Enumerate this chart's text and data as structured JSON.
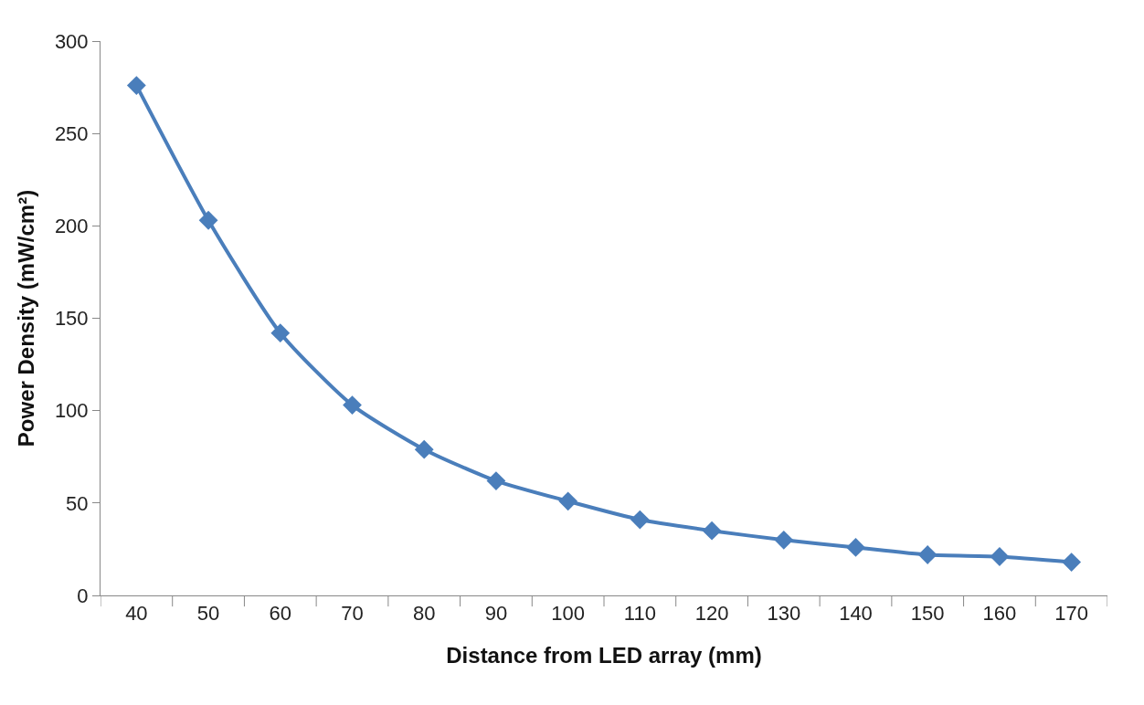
{
  "chart_data": {
    "type": "line",
    "xlabel": "Distance from LED array (mm)",
    "ylabel": "Power Density (mW/cm²)",
    "categories": [
      "40",
      "50",
      "60",
      "70",
      "80",
      "90",
      "100",
      "110",
      "120",
      "130",
      "140",
      "150",
      "160",
      "170"
    ],
    "series": [
      {
        "color": "#4a7ebb",
        "values": [
          276,
          203,
          142,
          103,
          79,
          62,
          51,
          41,
          35,
          30,
          26,
          22,
          21,
          18
        ]
      }
    ],
    "ylim": [
      0,
      300
    ],
    "yticks": [
      0,
      50,
      100,
      150,
      200,
      250,
      300
    ],
    "marker": "diamond",
    "line_style": "solid"
  }
}
